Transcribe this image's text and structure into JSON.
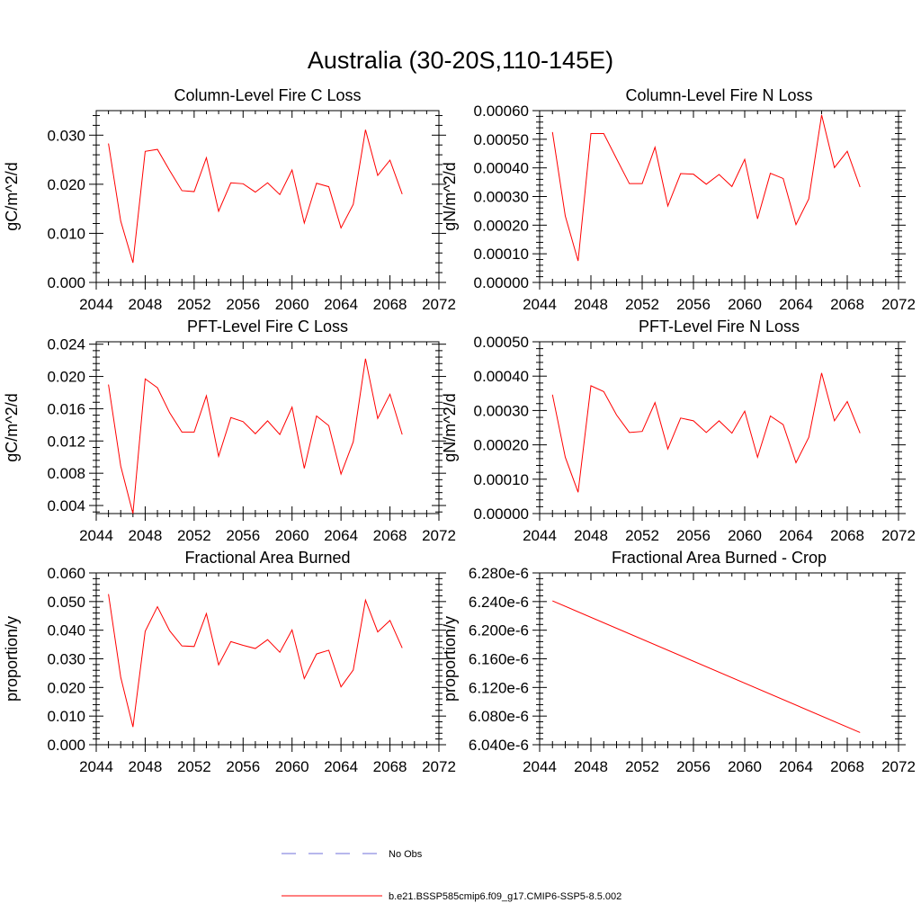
{
  "figure": {
    "title": "Australia (30-20S,110-145E)"
  },
  "legend": {
    "location": "bottom-center",
    "entries": [
      {
        "label": "No Obs",
        "color": "#6f6fd8",
        "style": "dashed"
      },
      {
        "label": "b.e21.BSSP585cmip6.f09_g17.CMIP6-SSP5-8.5.002",
        "color": "#ff0000",
        "style": "solid"
      }
    ]
  },
  "chart_data": [
    {
      "type": "line",
      "title": "Column-Level Fire C Loss",
      "ylabel": "gC/m^2/d",
      "xlim": [
        2044,
        2072
      ],
      "ylim": [
        0,
        0.035
      ],
      "xticks": [
        "2044",
        "2048",
        "2052",
        "2056",
        "2060",
        "2064",
        "2068",
        "2072"
      ],
      "yticks": [
        "0.000",
        "0.010",
        "0.020",
        "0.030"
      ],
      "x": [
        2045,
        2046,
        2047,
        2048,
        2049,
        2050,
        2051,
        2052,
        2053,
        2054,
        2055,
        2056,
        2057,
        2058,
        2059,
        2060,
        2061,
        2062,
        2063,
        2064,
        2065,
        2066,
        2067,
        2068,
        2069
      ],
      "series": [
        {
          "values": [
            0.0283,
            0.0125,
            0.004,
            0.0267,
            0.0271,
            0.0228,
            0.0187,
            0.0185,
            0.0254,
            0.0145,
            0.0203,
            0.0201,
            0.0184,
            0.0203,
            0.0179,
            0.0229,
            0.0121,
            0.0202,
            0.0195,
            0.0111,
            0.0159,
            0.0311,
            0.0218,
            0.0249,
            0.018
          ],
          "color": "#ff0000"
        }
      ]
    },
    {
      "type": "line",
      "title": "Column-Level Fire N Loss",
      "ylabel": "gN/m^2/d",
      "xlim": [
        2044,
        2072
      ],
      "ylim": [
        0,
        0.0006
      ],
      "xticks": [
        "2044",
        "2048",
        "2052",
        "2056",
        "2060",
        "2064",
        "2068",
        "2072"
      ],
      "yticks": [
        "0.00000",
        "0.00010",
        "0.00020",
        "0.00030",
        "0.00040",
        "0.00050",
        "0.00060"
      ],
      "x": [
        2045,
        2046,
        2047,
        2048,
        2049,
        2050,
        2051,
        2052,
        2053,
        2054,
        2055,
        2056,
        2057,
        2058,
        2059,
        2060,
        2061,
        2062,
        2063,
        2064,
        2065,
        2066,
        2067,
        2068,
        2069
      ],
      "series": [
        {
          "values": [
            0.000525,
            0.000232,
            7.5e-05,
            0.00052,
            0.00052,
            0.000432,
            0.000345,
            0.000345,
            0.000472,
            0.000267,
            0.00038,
            0.000378,
            0.000343,
            0.000377,
            0.000335,
            0.00043,
            0.000222,
            0.000381,
            0.000363,
            0.000202,
            0.000292,
            0.000585,
            0.000401,
            0.000458,
            0.000333
          ],
          "color": "#ff0000"
        }
      ]
    },
    {
      "type": "line",
      "title": "PFT-Level Fire C Loss",
      "ylabel": "gC/m^2/d",
      "xlim": [
        2044,
        2072
      ],
      "ylim": [
        0.003,
        0.0243
      ],
      "xticks": [
        "2044",
        "2048",
        "2052",
        "2056",
        "2060",
        "2064",
        "2068",
        "2072"
      ],
      "yticks": [
        "0.004",
        "0.008",
        "0.012",
        "0.016",
        "0.020",
        "0.024"
      ],
      "x": [
        2045,
        2046,
        2047,
        2048,
        2049,
        2050,
        2051,
        2052,
        2053,
        2054,
        2055,
        2056,
        2057,
        2058,
        2059,
        2060,
        2061,
        2062,
        2063,
        2064,
        2065,
        2066,
        2067,
        2068,
        2069
      ],
      "series": [
        {
          "values": [
            0.019,
            0.0089,
            0.003,
            0.0197,
            0.0186,
            0.0155,
            0.0131,
            0.0131,
            0.0176,
            0.0101,
            0.0149,
            0.0144,
            0.0129,
            0.0145,
            0.0128,
            0.0162,
            0.0086,
            0.0151,
            0.0139,
            0.0079,
            0.0119,
            0.0222,
            0.0148,
            0.0178,
            0.0128
          ],
          "color": "#ff0000"
        }
      ]
    },
    {
      "type": "line",
      "title": "PFT-Level Fire N Loss",
      "ylabel": "gN/m^2/d",
      "xlim": [
        2044,
        2072
      ],
      "ylim": [
        0,
        0.0005
      ],
      "xticks": [
        "2044",
        "2048",
        "2052",
        "2056",
        "2060",
        "2064",
        "2068",
        "2072"
      ],
      "yticks": [
        "0.00000",
        "0.00010",
        "0.00020",
        "0.00030",
        "0.00040",
        "0.00050"
      ],
      "x": [
        2045,
        2046,
        2047,
        2048,
        2049,
        2050,
        2051,
        2052,
        2053,
        2054,
        2055,
        2056,
        2057,
        2058,
        2059,
        2060,
        2061,
        2062,
        2063,
        2064,
        2065,
        2066,
        2067,
        2068,
        2069
      ],
      "series": [
        {
          "values": [
            0.000346,
            0.000164,
            6.2e-05,
            0.000372,
            0.000355,
            0.000287,
            0.000236,
            0.000239,
            0.000323,
            0.000188,
            0.000278,
            0.00027,
            0.000236,
            0.00027,
            0.000234,
            0.000298,
            0.000164,
            0.000284,
            0.000259,
            0.000148,
            0.000222,
            0.000409,
            0.00027,
            0.000326,
            0.000234
          ],
          "color": "#ff0000"
        }
      ]
    },
    {
      "type": "line",
      "title": "Fractional Area Burned",
      "ylabel": "proportion/y",
      "xlim": [
        2044,
        2072
      ],
      "ylim": [
        0,
        0.06
      ],
      "xticks": [
        "2044",
        "2048",
        "2052",
        "2056",
        "2060",
        "2064",
        "2068",
        "2072"
      ],
      "yticks": [
        "0.000",
        "0.010",
        "0.020",
        "0.030",
        "0.040",
        "0.050",
        "0.060"
      ],
      "x": [
        2045,
        2046,
        2047,
        2048,
        2049,
        2050,
        2051,
        2052,
        2053,
        2054,
        2055,
        2056,
        2057,
        2058,
        2059,
        2060,
        2061,
        2062,
        2063,
        2064,
        2065,
        2066,
        2067,
        2068,
        2069
      ],
      "series": [
        {
          "values": [
            0.0526,
            0.0236,
            0.0062,
            0.0396,
            0.0482,
            0.0398,
            0.0345,
            0.0343,
            0.0458,
            0.0279,
            0.036,
            0.0347,
            0.0336,
            0.0367,
            0.0323,
            0.0401,
            0.0231,
            0.0317,
            0.033,
            0.0202,
            0.0261,
            0.0505,
            0.0394,
            0.0434,
            0.0338
          ],
          "color": "#ff0000"
        }
      ]
    },
    {
      "type": "line",
      "title": "Fractional Area Burned - Crop",
      "ylabel": "proportion/y",
      "xlim": [
        2044,
        2072
      ],
      "ylim": [
        6.04e-06,
        6.28e-06
      ],
      "xticks": [
        "2044",
        "2048",
        "2052",
        "2056",
        "2060",
        "2064",
        "2068",
        "2072"
      ],
      "yticks": [
        "6.040e-6",
        "6.080e-6",
        "6.120e-6",
        "6.160e-6",
        "6.200e-6",
        "6.240e-6",
        "6.280e-6"
      ],
      "x": [
        2045,
        2069
      ],
      "series": [
        {
          "values": [
            6.241e-06,
            6.057e-06
          ],
          "color": "#ff0000"
        }
      ]
    }
  ]
}
